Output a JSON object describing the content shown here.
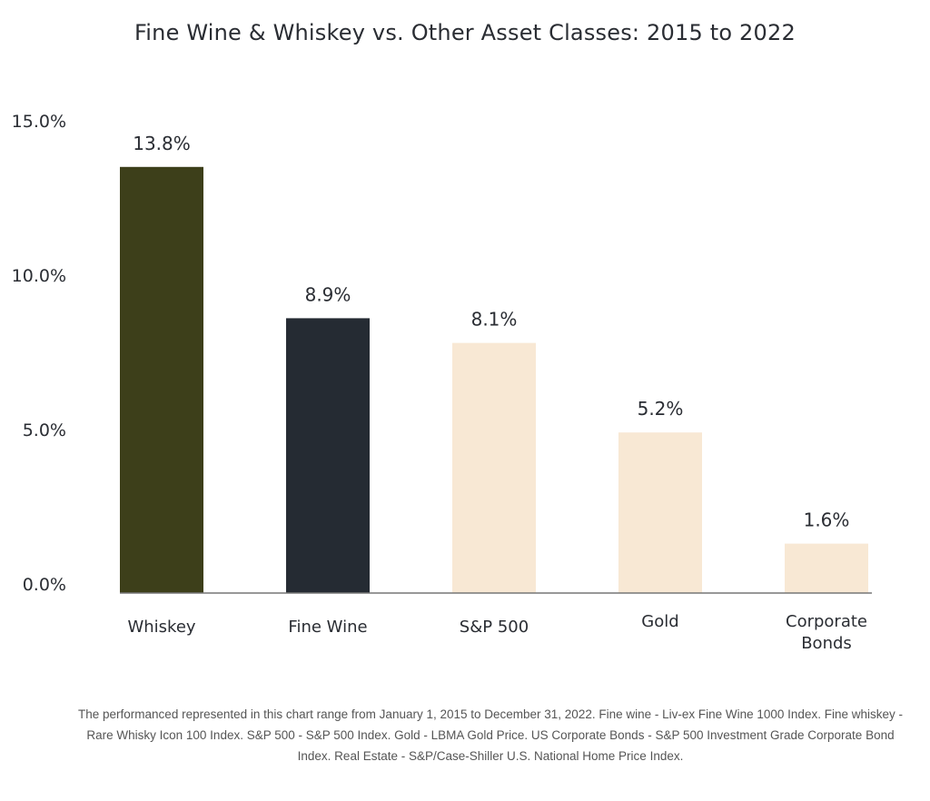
{
  "chart_data": {
    "type": "bar",
    "title": "Fine Wine & Whiskey vs. Other Asset Classes: 2015 to 2022",
    "categories": [
      "Whiskey",
      "Fine Wine",
      "S&P 500",
      "Gold",
      "Corporate Bonds"
    ],
    "values": [
      13.8,
      8.9,
      8.1,
      5.2,
      1.6
    ],
    "data_labels": [
      "13.8%",
      "8.9%",
      "8.1%",
      "5.2%",
      "1.6%"
    ],
    "colors": [
      "#3d3f1a",
      "#252b33",
      "#f8e8d4",
      "#f8e8d4",
      "#f8e8d4"
    ],
    "yticks": [
      0,
      5,
      10,
      15
    ],
    "ytick_labels": [
      "0.0%",
      "5.0%",
      "10.0%",
      "15.0%"
    ],
    "ylim": [
      0,
      15
    ],
    "xlabel": "",
    "ylabel": "",
    "grid": false,
    "legend": "none"
  },
  "footnote": "The performanced represented in this chart range from January 1, 2015 to December 31, 2022. Fine wine - Liv-ex Fine Wine 1000 Index. Fine whiskey - Rare Whisky Icon 100 Index. S&P 500 - S&P 500 Index. Gold - LBMA Gold Price. US Corporate Bonds - S&P 500 Investment Grade Corporate Bond Index. Real Estate - S&P/Case-Shiller U.S. National Home Price Index."
}
